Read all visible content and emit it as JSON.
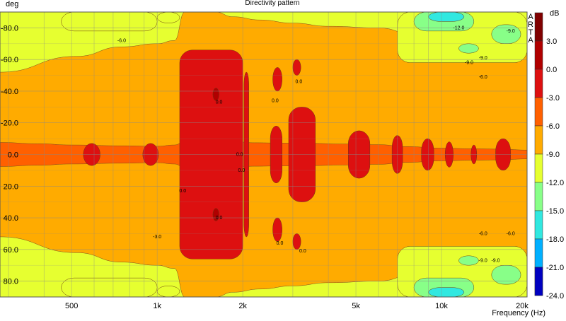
{
  "chart_data": {
    "type": "heatmap",
    "title": "Directivity pattern",
    "ylabel": "deg",
    "xlabel": "Frequency (Hz)",
    "brand": "ARTA",
    "x_scale": "log",
    "xlim": [
      280,
      20000
    ],
    "ylim": [
      -90,
      90
    ],
    "x_ticks": [
      {
        "value": 500,
        "label": "500"
      },
      {
        "value": 1000,
        "label": "1k"
      },
      {
        "value": 2000,
        "label": "2k"
      },
      {
        "value": 5000,
        "label": "5k"
      },
      {
        "value": 10000,
        "label": "10k"
      },
      {
        "value": 20000,
        "label": "20k"
      }
    ],
    "y_ticks": [
      {
        "value": -80,
        "label": "-80.0"
      },
      {
        "value": -60,
        "label": "-60.0"
      },
      {
        "value": -40,
        "label": "-40.0"
      },
      {
        "value": -20,
        "label": "-20.0"
      },
      {
        "value": 0,
        "label": "0.0"
      },
      {
        "value": 20,
        "label": "20.0"
      },
      {
        "value": 40,
        "label": "40.0"
      },
      {
        "value": 60,
        "label": "60.0"
      },
      {
        "value": 80,
        "label": "80.0"
      }
    ],
    "colorbar": {
      "unit": "dB",
      "levels": [
        {
          "value": 3,
          "label": "3.0",
          "color": "#b00000"
        },
        {
          "value": 0,
          "label": "0.0",
          "color": "#dd1010"
        },
        {
          "value": -3,
          "label": "-3.0",
          "color": "#ff6000"
        },
        {
          "value": -6,
          "label": "-6.0",
          "color": "#ffab00"
        },
        {
          "value": -9,
          "label": "-9.0",
          "color": "#e6ff30"
        },
        {
          "value": -12,
          "label": "-12.0",
          "color": "#88ff88"
        },
        {
          "value": -15,
          "label": "-15.0",
          "color": "#30e8e0"
        },
        {
          "value": -18,
          "label": "-18.0",
          "color": "#00b0ff"
        },
        {
          "value": -21,
          "label": "-21.0",
          "color": "#0050f0"
        },
        {
          "value": -24,
          "label": "-24.0",
          "color": "#0000c0"
        }
      ],
      "top_color": "#800000"
    },
    "level_bands": [
      {
        "level": -6,
        "segments": [
          {
            "x": 280,
            "w": 520
          },
          {
            "x": 520,
            "w": 620
          },
          {
            "x": 750,
            "w": 680
          },
          {
            "x": 1000,
            "w": 700
          },
          {
            "x": 1150,
            "w": 720
          },
          {
            "x": 1250,
            "w": 900
          },
          {
            "x": 1600,
            "w": 900
          },
          {
            "x": 1850,
            "w": 870
          },
          {
            "x": 2300,
            "w": 850
          },
          {
            "x": 3000,
            "w": 830
          },
          {
            "x": 4000,
            "w": 810
          },
          {
            "x": 6000,
            "w": 800
          },
          {
            "x": 8000,
            "w": 760
          },
          {
            "x": 10000,
            "w": 760
          },
          {
            "x": 13000,
            "w": 740
          },
          {
            "x": 16000,
            "w": 740
          },
          {
            "x": 20000,
            "w": 720
          }
        ]
      },
      {
        "level": -3,
        "segments": [
          {
            "x": 280,
            "w": 76
          },
          {
            "x": 380,
            "w": 68
          },
          {
            "x": 500,
            "w": 60
          },
          {
            "x": 750,
            "w": 55
          },
          {
            "x": 1000,
            "w": 52
          },
          {
            "x": 1150,
            "w": 60
          },
          {
            "x": 1250,
            "w": 82
          },
          {
            "x": 1800,
            "w": 84
          },
          {
            "x": 2200,
            "w": 74
          },
          {
            "x": 2800,
            "w": 72
          },
          {
            "x": 3500,
            "w": 70
          },
          {
            "x": 4500,
            "w": 66
          },
          {
            "x": 6000,
            "w": 62
          },
          {
            "x": 7500,
            "w": 50
          },
          {
            "x": 10000,
            "w": 40
          },
          {
            "x": 13000,
            "w": 36
          },
          {
            "x": 16000,
            "w": 34
          },
          {
            "x": 20000,
            "w": 28
          }
        ]
      }
    ],
    "level_blobs": [
      {
        "level": 0,
        "x1": 1200,
        "x2": 2000,
        "y1": -66,
        "y2": 66
      },
      {
        "level": 0,
        "x1": 2020,
        "x2": 2100,
        "y1": -52,
        "y2": 52
      },
      {
        "level": 0,
        "x1": 2900,
        "x2": 3600,
        "y1": -30,
        "y2": 30
      },
      {
        "level": 0,
        "x1": 2500,
        "x2": 2750,
        "y1": -18,
        "y2": 18
      },
      {
        "level": 0,
        "x1": 4700,
        "x2": 5600,
        "y1": -15,
        "y2": 15
      },
      {
        "level": 0,
        "x1": 6700,
        "x2": 7300,
        "y1": -12,
        "y2": 12
      },
      {
        "level": 0,
        "x1": 8500,
        "x2": 9400,
        "y1": -10,
        "y2": 10
      },
      {
        "level": 0,
        "x1": 10300,
        "x2": 11000,
        "y1": -8,
        "y2": 8
      },
      {
        "level": 0,
        "x1": 12700,
        "x2": 13300,
        "y1": -6,
        "y2": 6
      },
      {
        "level": 0,
        "x1": 15500,
        "x2": 17500,
        "y1": -10,
        "y2": 10
      },
      {
        "level": 0,
        "x1": 550,
        "x2": 630,
        "y1": -7,
        "y2": 7
      },
      {
        "level": 0,
        "x1": 890,
        "x2": 1010,
        "y1": -7,
        "y2": 7
      },
      {
        "level": 0,
        "x1": 2550,
        "x2": 2750,
        "y1": -55,
        "y2": -40
      },
      {
        "level": 0,
        "x1": 2550,
        "x2": 2750,
        "y1": 40,
        "y2": 55
      },
      {
        "level": 0,
        "x1": 3000,
        "x2": 3200,
        "y1": -60,
        "y2": -50
      },
      {
        "level": 0,
        "x1": 3000,
        "x2": 3200,
        "y1": 50,
        "y2": 60
      },
      {
        "level": 3,
        "x1": 1570,
        "x2": 1650,
        "y1": -42,
        "y2": -34
      },
      {
        "level": 3,
        "x1": 1570,
        "x2": 1650,
        "y1": 34,
        "y2": 42
      },
      {
        "level": -9,
        "x1": 460,
        "x2": 1000,
        "y1": -90,
        "y2": -78
      },
      {
        "level": -9,
        "x1": 460,
        "x2": 1000,
        "y1": 78,
        "y2": 90
      },
      {
        "level": -9,
        "x1": 1000,
        "x2": 1200,
        "y1": -90,
        "y2": -83
      },
      {
        "level": -9,
        "x1": 1000,
        "x2": 1200,
        "y1": 83,
        "y2": 90
      },
      {
        "level": -9,
        "x1": 7000,
        "x2": 20000,
        "y1": -90,
        "y2": -58
      },
      {
        "level": -9,
        "x1": 7000,
        "x2": 20000,
        "y1": 58,
        "y2": 90
      },
      {
        "level": -12,
        "x1": 8000,
        "x2": 13000,
        "y1": -90,
        "y2": -78
      },
      {
        "level": -12,
        "x1": 8000,
        "x2": 13000,
        "y1": 78,
        "y2": 90
      },
      {
        "level": -12,
        "x1": 15000,
        "x2": 19000,
        "y1": -82,
        "y2": -70
      },
      {
        "level": -12,
        "x1": 15000,
        "x2": 19000,
        "y1": 70,
        "y2": 82
      },
      {
        "level": -12,
        "x1": 11500,
        "x2": 13500,
        "y1": -70,
        "y2": -64
      },
      {
        "level": -12,
        "x1": 11500,
        "x2": 13500,
        "y1": 64,
        "y2": 70
      },
      {
        "level": -15,
        "x1": 9000,
        "x2": 12000,
        "y1": -90,
        "y2": -84
      },
      {
        "level": -15,
        "x1": 9000,
        "x2": 12000,
        "y1": 84,
        "y2": 90
      }
    ],
    "annotations": [
      {
        "x": 750,
        "y": -72,
        "label": "-6.0"
      },
      {
        "x": 1000,
        "y": 52,
        "label": "-3.0"
      },
      {
        "x": 1230,
        "y": 23,
        "label": "0.0"
      },
      {
        "x": 1650,
        "y": -33,
        "label": "0.0"
      },
      {
        "x": 1650,
        "y": 40,
        "label": "0.0"
      },
      {
        "x": 1950,
        "y": 0,
        "label": "0.0"
      },
      {
        "x": 1980,
        "y": 10,
        "label": "0.0"
      },
      {
        "x": 2600,
        "y": -34,
        "label": "0.0"
      },
      {
        "x": 3150,
        "y": -46,
        "label": "0.0"
      },
      {
        "x": 2700,
        "y": 56,
        "label": "0.0"
      },
      {
        "x": 3250,
        "y": 61,
        "label": "0.0"
      },
      {
        "x": 11500,
        "y": -80,
        "label": "-12.0"
      },
      {
        "x": 17500,
        "y": -78,
        "label": "-9.0"
      },
      {
        "x": 12500,
        "y": -58,
        "label": "-9.0"
      },
      {
        "x": 14000,
        "y": -61,
        "label": "-9.0"
      },
      {
        "x": 14000,
        "y": -49,
        "label": "-6.0"
      },
      {
        "x": 14000,
        "y": 50,
        "label": "-6.0"
      },
      {
        "x": 17500,
        "y": 50,
        "label": "-6.0"
      },
      {
        "x": 14000,
        "y": 67,
        "label": "-9.0"
      },
      {
        "x": 15500,
        "y": 67,
        "label": "-9.0"
      }
    ],
    "grid": true
  }
}
